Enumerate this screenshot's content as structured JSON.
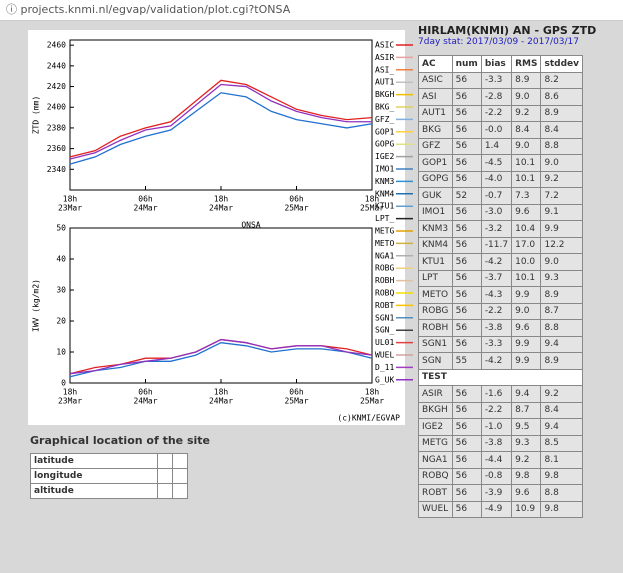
{
  "browser": {
    "url": "projects.knmi.nl/egvap/validation/plot.cgi?tONSA"
  },
  "chart_data": [
    {
      "type": "line",
      "ylabel": "ZTD (mm)",
      "station": "ONSA",
      "x": [
        0,
        4,
        8,
        12,
        16,
        20,
        24,
        28,
        32,
        36,
        40,
        44,
        48
      ],
      "xlim": [
        0,
        48
      ],
      "xticks": [
        {
          "value": 0,
          "label": "18h"
        },
        {
          "value": 12,
          "label": "06h"
        },
        {
          "value": 24,
          "label": "18h"
        },
        {
          "value": 36,
          "label": "06h"
        },
        {
          "value": 48,
          "label": "18h"
        }
      ],
      "xtick_dates": [
        "23Mar",
        "24Mar",
        "24Mar",
        "25Mar",
        "25Mar"
      ],
      "ylim": [
        2320,
        2465
      ],
      "yticks": [
        2340,
        2360,
        2380,
        2400,
        2420,
        2440,
        2460
      ],
      "series": [
        {
          "color": "#e02020",
          "values": [
            2352,
            2358,
            2372,
            2380,
            2386,
            2406,
            2426,
            2422,
            2410,
            2398,
            2392,
            2388,
            2390
          ]
        },
        {
          "color": "#2070d0",
          "values": [
            2345,
            2352,
            2364,
            2372,
            2378,
            2396,
            2414,
            2410,
            2396,
            2388,
            2384,
            2380,
            2384
          ]
        },
        {
          "color": "#9030c0",
          "values": [
            2350,
            2356,
            2368,
            2378,
            2382,
            2402,
            2422,
            2420,
            2406,
            2396,
            2390,
            2386,
            2386
          ]
        }
      ]
    },
    {
      "type": "line",
      "ylabel": "IWV (kg/m2)",
      "x": [
        0,
        4,
        8,
        12,
        16,
        20,
        24,
        28,
        32,
        36,
        40,
        44,
        48
      ],
      "xlim": [
        0,
        48
      ],
      "xticks": [
        {
          "value": 0,
          "label": "18h"
        },
        {
          "value": 12,
          "label": "06h"
        },
        {
          "value": 24,
          "label": "18h"
        },
        {
          "value": 36,
          "label": "06h"
        },
        {
          "value": 48,
          "label": "18h"
        }
      ],
      "xtick_dates": [
        "23Mar",
        "24Mar",
        "24Mar",
        "25Mar",
        "25Mar"
      ],
      "ylim": [
        0,
        50
      ],
      "yticks": [
        0,
        10,
        20,
        30,
        40,
        50
      ],
      "series": [
        {
          "color": "#e02020",
          "values": [
            3,
            5,
            6,
            8,
            8,
            10,
            14,
            13,
            11,
            12,
            12,
            11,
            9
          ]
        },
        {
          "color": "#2070d0",
          "values": [
            2,
            4,
            5,
            7,
            7,
            9,
            13,
            12,
            10,
            11,
            11,
            10,
            8
          ]
        },
        {
          "color": "#9030c0",
          "values": [
            3,
            4,
            6,
            7,
            8,
            10,
            14,
            13,
            11,
            12,
            12,
            10,
            9
          ]
        }
      ]
    }
  ],
  "plot": {
    "credit": "(c)KNMI/EGVAP",
    "legend": [
      {
        "name": "ASIC",
        "color": "#e02020"
      },
      {
        "name": "ASIR",
        "color": "#e8a0a0"
      },
      {
        "name": "ASI_",
        "color": "#f08040"
      },
      {
        "name": "AUT1",
        "color": "#c0c0c0"
      },
      {
        "name": "BKGH",
        "color": "#f0c000"
      },
      {
        "name": "BKG_",
        "color": "#e0d060"
      },
      {
        "name": "GFZ_",
        "color": "#80b0e0"
      },
      {
        "name": "GOP1",
        "color": "#ffd040"
      },
      {
        "name": "GOPG",
        "color": "#e0e080"
      },
      {
        "name": "IGE2",
        "color": "#a0a0a0"
      },
      {
        "name": "IMO1",
        "color": "#4080c0"
      },
      {
        "name": "KNM3",
        "color": "#3090d0"
      },
      {
        "name": "KNM4",
        "color": "#2070b0"
      },
      {
        "name": "KTU1",
        "color": "#60a0d0"
      },
      {
        "name": "LPT_",
        "color": "#202020"
      },
      {
        "name": "METG",
        "color": "#e0a000"
      },
      {
        "name": "METO",
        "color": "#d0b040"
      },
      {
        "name": "NGA1",
        "color": "#b0b0b0"
      },
      {
        "name": "ROBG",
        "color": "#f0d080"
      },
      {
        "name": "ROBH",
        "color": "#e0c0a0"
      },
      {
        "name": "ROBQ",
        "color": "#f0e000"
      },
      {
        "name": "ROBT",
        "color": "#ffc000"
      },
      {
        "name": "SGN1",
        "color": "#5090c0"
      },
      {
        "name": "SGN_",
        "color": "#404040"
      },
      {
        "name": "UL01",
        "color": "#e04040"
      },
      {
        "name": "WUEL",
        "color": "#d0a0a0"
      },
      {
        "name": "D_11",
        "color": "#a040c0"
      },
      {
        "name": "G_UK",
        "color": "#9030c0"
      }
    ]
  },
  "stats": {
    "title": "HIRLAM(KNMI) AN - GPS ZTD",
    "subtitle": "7day stat: 2017/03/09 - 2017/03/17",
    "header": [
      "AC",
      "num",
      "bias",
      "RMS",
      "stddev"
    ],
    "rows": [
      [
        "ASIC",
        "56",
        "-3.3",
        "8.9",
        "8.2"
      ],
      [
        "ASI",
        "56",
        "-2.8",
        "9.0",
        "8.6"
      ],
      [
        "AUT1",
        "56",
        "-2.2",
        "9.2",
        "8.9"
      ],
      [
        "BKG",
        "56",
        "-0.0",
        "8.4",
        "8.4"
      ],
      [
        "GFZ",
        "56",
        "1.4",
        "9.0",
        "8.8"
      ],
      [
        "GOP1",
        "56",
        "-4.5",
        "10.1",
        "9.0"
      ],
      [
        "GOPG",
        "56",
        "-4.0",
        "10.1",
        "9.2"
      ],
      [
        "GUK",
        "52",
        "-0.7",
        "7.3",
        "7.2"
      ],
      [
        "IMO1",
        "56",
        "-3.0",
        "9.6",
        "9.1"
      ],
      [
        "KNM3",
        "56",
        "-3.2",
        "10.4",
        "9.9"
      ],
      [
        "KNM4",
        "56",
        "-11.7",
        "17.0",
        "12.2"
      ],
      [
        "KTU1",
        "56",
        "-4.2",
        "10.0",
        "9.0"
      ],
      [
        "LPT",
        "56",
        "-3.7",
        "10.1",
        "9.3"
      ],
      [
        "METO",
        "56",
        "-4.3",
        "9.9",
        "8.9"
      ],
      [
        "ROBG",
        "56",
        "-2.2",
        "9.0",
        "8.7"
      ],
      [
        "ROBH",
        "56",
        "-3.8",
        "9.6",
        "8.8"
      ],
      [
        "SGN1",
        "56",
        "-3.3",
        "9.9",
        "9.4"
      ],
      [
        "SGN",
        "55",
        "-4.2",
        "9.9",
        "8.9"
      ]
    ],
    "test_label": "TEST",
    "test_rows": [
      [
        "ASIR",
        "56",
        "-1.6",
        "9.4",
        "9.2"
      ],
      [
        "BKGH",
        "56",
        "-2.2",
        "8.7",
        "8.4"
      ],
      [
        "IGE2",
        "56",
        "-1.0",
        "9.5",
        "9.4"
      ],
      [
        "METG",
        "56",
        "-3.8",
        "9.3",
        "8.5"
      ],
      [
        "NGA1",
        "56",
        "-4.4",
        "9.2",
        "8.1"
      ],
      [
        "ROBQ",
        "56",
        "-0.8",
        "9.8",
        "9.8"
      ],
      [
        "ROBT",
        "56",
        "-3.9",
        "9.6",
        "8.8"
      ],
      [
        "WUEL",
        "56",
        "-4.9",
        "10.9",
        "9.8"
      ]
    ]
  },
  "location": {
    "title": "Graphical location of the site",
    "rows": [
      "latitude",
      "longitude",
      "altitude"
    ]
  }
}
